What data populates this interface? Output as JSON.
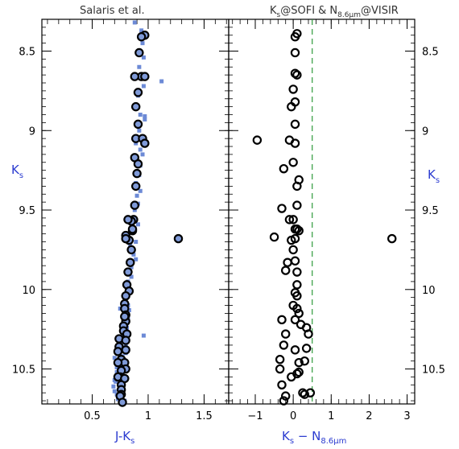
{
  "chart_data": [
    {
      "type": "scatter",
      "title": "Salaris et al.",
      "xlabel": "J-K",
      "xlabel_sub": "s",
      "ylabel": "K",
      "ylabel_sub": "s",
      "xlim": [
        0.05,
        1.72
      ],
      "ylim": [
        10.72,
        8.3
      ],
      "y_inverted": true,
      "xticks": [
        0.5,
        1,
        1.5
      ],
      "xtick_labels": [
        "0.5",
        "1",
        "1.5"
      ],
      "yticks": [
        8.5,
        9,
        9.5,
        10,
        10.5
      ],
      "ytick_labels": [
        "8.5",
        "9",
        "9.5",
        "10",
        "10.5"
      ],
      "series": [
        {
          "marker": "open-circle-filled",
          "color": "#7f9ad8",
          "x": [
            0.97,
            0.94,
            0.92,
            0.94,
            0.88,
            0.91,
            0.97,
            0.89,
            0.91,
            0.89,
            0.95,
            0.97,
            0.88,
            0.91,
            0.9,
            0.89,
            0.88,
            0.87,
            0.85,
            0.82,
            0.86,
            0.8,
            0.86,
            0.83,
            0.8,
            0.85,
            1.27,
            0.84,
            0.82,
            0.81,
            0.83,
            0.8,
            0.79,
            0.79,
            0.8,
            0.8,
            0.78,
            0.79,
            0.78,
            0.81,
            0.74,
            0.8,
            0.74,
            0.8,
            0.73,
            0.76,
            0.79,
            0.73,
            0.8,
            0.76,
            0.75,
            0.73,
            0.79,
            0.76,
            0.76,
            0.76,
            0.75,
            0.77
          ],
          "y": [
            8.4,
            8.41,
            8.51,
            8.66,
            8.66,
            8.76,
            8.66,
            8.85,
            8.96,
            9.05,
            9.05,
            9.08,
            9.17,
            9.21,
            9.27,
            9.35,
            9.47,
            9.56,
            9.57,
            9.56,
            9.63,
            9.66,
            9.62,
            9.69,
            9.68,
            9.75,
            9.68,
            9.83,
            9.89,
            9.97,
            10.01,
            10.04,
            10.09,
            10.12,
            10.16,
            10.2,
            10.23,
            10.17,
            10.26,
            10.28,
            10.31,
            10.32,
            10.36,
            10.38,
            10.39,
            10.44,
            10.46,
            10.46,
            10.5,
            10.51,
            10.55,
            10.55,
            10.56,
            10.6,
            10.63,
            10.66,
            10.67,
            10.71
          ]
        },
        {
          "marker": "square",
          "color": "#6c8ad6",
          "x": [
            0.88,
            0.94,
            0.95,
            0.96,
            0.92,
            0.96,
            1.12,
            0.91,
            0.93,
            0.97,
            0.97,
            0.92,
            0.89,
            0.93,
            0.95,
            0.93,
            0.92,
            0.89,
            0.93,
            0.9,
            0.91,
            0.88,
            0.87,
            0.91,
            0.86,
            0.89,
            0.84,
            0.87,
            0.89,
            0.85,
            0.83,
            0.85,
            0.82,
            0.83,
            0.81,
            0.8,
            0.82,
            0.83,
            0.79,
            0.82,
            0.78,
            0.81,
            0.79,
            0.8,
            0.76,
            0.78,
            0.8,
            0.78,
            0.8,
            0.77,
            0.78,
            0.8,
            0.7,
            0.73,
            0.78,
            0.77,
            0.75,
            0.77,
            0.71,
            0.75,
            0.7,
            0.72,
            0.76,
            0.79,
            0.96,
            0.74,
            0.77,
            0.72,
            0.7,
            0.74,
            0.78,
            0.73,
            0.76,
            0.74,
            0.75,
            0.69,
            0.72,
            0.73
          ],
          "y": [
            8.32,
            8.37,
            8.45,
            8.54,
            8.6,
            8.72,
            8.69,
            8.78,
            8.9,
            8.91,
            8.93,
            9.0,
            9.08,
            9.12,
            9.15,
            9.22,
            9.28,
            9.33,
            9.38,
            9.41,
            9.46,
            9.5,
            9.55,
            9.59,
            9.62,
            9.7,
            9.72,
            9.78,
            9.81,
            9.86,
            9.89,
            9.92,
            9.95,
            10.0,
            10.04,
            10.08,
            10.1,
            10.13,
            10.14,
            10.18,
            10.21,
            10.24,
            10.22,
            10.29,
            10.3,
            10.33,
            10.35,
            10.37,
            10.4,
            10.42,
            10.44,
            10.47,
            10.43,
            10.38,
            10.49,
            10.52,
            10.55,
            10.58,
            10.58,
            10.61,
            10.64,
            10.66,
            10.68,
            10.7,
            10.29,
            10.45,
            10.48,
            10.52,
            10.57,
            10.39,
            10.26,
            10.36,
            10.63,
            10.68,
            10.12,
            10.61,
            10.49,
            10.69
          ]
        }
      ]
    },
    {
      "type": "scatter",
      "title_parts": [
        "K",
        "s",
        "@SOFI & N",
        "8.6μm",
        "@VISIR"
      ],
      "xlabel": "K",
      "xlabel_sub": "s",
      "xlabel_mid": " − N",
      "xlabel_sub2": "8.6μm",
      "ylabel": "K",
      "ylabel_sub": "s",
      "xlim": [
        -1.7,
        3.2
      ],
      "ylim": [
        10.72,
        8.3
      ],
      "y_inverted": true,
      "xticks": [
        -1,
        0,
        1,
        2,
        3
      ],
      "xtick_labels": [
        "−1",
        "0",
        "1",
        "2",
        "3"
      ],
      "yticks": [
        8.5,
        9,
        9.5,
        10,
        10.5
      ],
      "ytick_labels": [
        "8.5",
        "9",
        "9.5",
        "10",
        "10.5"
      ],
      "vline_x": 0.5,
      "vline_color": "#2e9a3a",
      "series": [
        {
          "marker": "open-circle",
          "color": "#000000",
          "x": [
            0.1,
            0.05,
            0.05,
            0.05,
            0.1,
            0.0,
            0.05,
            -0.05,
            0.05,
            -0.95,
            -0.1,
            0.05,
            -0.25,
            0.0,
            0.15,
            0.1,
            0.1,
            -0.3,
            -0.1,
            0.0,
            0.1,
            0.15,
            0.05,
            -0.5,
            -0.05,
            0.05,
            0.0,
            2.6,
            -0.15,
            0.05,
            0.1,
            -0.2,
            0.1,
            0.05,
            0.1,
            0.0,
            0.1,
            0.15,
            -0.3,
            0.05,
            0.2,
            0.35,
            0.4,
            -0.2,
            0.35,
            0.05,
            -0.25,
            0.3,
            0.15,
            -0.35,
            0.15,
            -0.35,
            -0.05,
            0.1,
            0.25,
            -0.3,
            -0.2,
            0.3,
            0.45,
            -0.25
          ],
          "y": [
            8.39,
            8.41,
            8.51,
            8.64,
            8.65,
            8.74,
            8.82,
            8.85,
            8.96,
            9.06,
            9.06,
            9.08,
            9.24,
            9.2,
            9.31,
            9.35,
            9.47,
            9.49,
            9.56,
            9.56,
            9.62,
            9.63,
            9.62,
            9.67,
            9.69,
            9.68,
            9.75,
            9.68,
            9.83,
            9.82,
            9.89,
            9.88,
            9.97,
            10.02,
            10.04,
            10.1,
            10.12,
            10.15,
            10.19,
            10.19,
            10.22,
            10.24,
            10.28,
            10.28,
            10.37,
            10.38,
            10.35,
            10.45,
            10.46,
            10.44,
            10.52,
            10.5,
            10.55,
            10.53,
            10.65,
            10.6,
            10.67,
            10.66,
            10.65,
            10.7
          ]
        }
      ]
    }
  ]
}
